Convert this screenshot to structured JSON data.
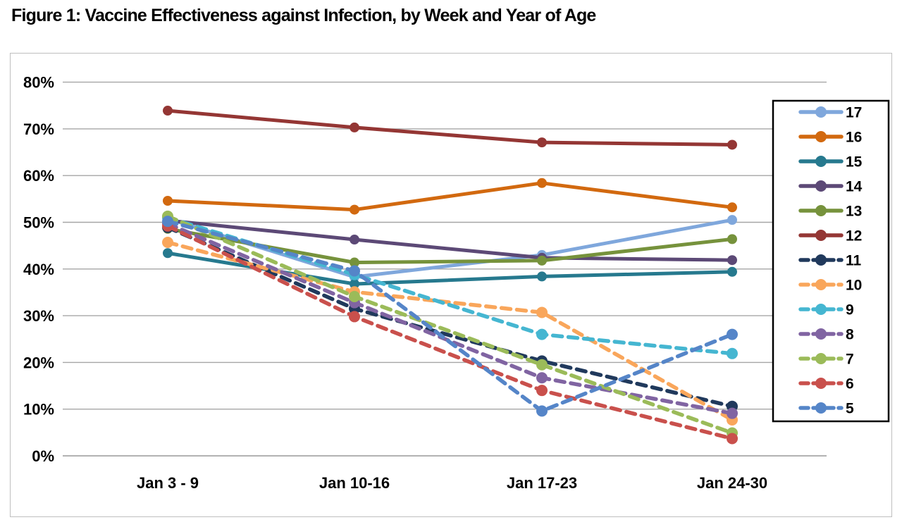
{
  "title": "Figure 1: Vaccine Effectiveness against Infection, by Week and Year of Age",
  "chart_data": {
    "type": "line",
    "categories": [
      "Jan 3 - 9",
      "Jan 10-16",
      "Jan 17-23",
      "Jan 24-30"
    ],
    "y_ticks": [
      "80%",
      "70%",
      "60%",
      "50%",
      "40%",
      "30%",
      "20%",
      "10%",
      "0%"
    ],
    "ylim": [
      0,
      80
    ],
    "y_tick_step": 10,
    "grid": true,
    "legend_position": "right-overlay",
    "xlabel": "",
    "ylabel": "",
    "series": [
      {
        "name": "17",
        "color": "#7FA7DC",
        "dash": false,
        "values": [
          50.8,
          38.3,
          43.0,
          50.5
        ]
      },
      {
        "name": "16",
        "color": "#D2690F",
        "dash": false,
        "values": [
          54.6,
          52.7,
          58.4,
          53.2
        ]
      },
      {
        "name": "15",
        "color": "#26798E",
        "dash": false,
        "values": [
          43.4,
          36.8,
          38.4,
          39.4
        ]
      },
      {
        "name": "14",
        "color": "#5C4976",
        "dash": false,
        "values": [
          50.4,
          46.3,
          42.4,
          41.9
        ]
      },
      {
        "name": "13",
        "color": "#76923C",
        "dash": false,
        "values": [
          48.6,
          41.4,
          41.8,
          46.4
        ]
      },
      {
        "name": "12",
        "color": "#943634",
        "dash": false,
        "values": [
          73.9,
          70.3,
          67.1,
          66.6
        ]
      },
      {
        "name": "11",
        "color": "#20395C",
        "dash": true,
        "values": [
          48.9,
          31.5,
          20.3,
          10.6
        ]
      },
      {
        "name": "10",
        "color": "#F9A65B",
        "dash": true,
        "values": [
          45.7,
          35.1,
          30.7,
          7.7
        ]
      },
      {
        "name": "9",
        "color": "#45B6D1",
        "dash": true,
        "values": [
          51.0,
          38.8,
          26.0,
          21.9
        ]
      },
      {
        "name": "8",
        "color": "#8064A2",
        "dash": true,
        "values": [
          49.7,
          32.8,
          16.7,
          9.1
        ]
      },
      {
        "name": "7",
        "color": "#9BBB59",
        "dash": true,
        "values": [
          51.3,
          34.1,
          19.5,
          4.9
        ]
      },
      {
        "name": "6",
        "color": "#C9504C",
        "dash": true,
        "values": [
          49.2,
          29.8,
          14.0,
          3.7
        ]
      },
      {
        "name": "5",
        "color": "#5585C8",
        "dash": true,
        "values": [
          50.2,
          39.6,
          9.6,
          26.0
        ]
      }
    ],
    "colors": {
      "gridline": "#A6A6A6",
      "zero_line": "#999999",
      "chart_border": "#BFBFBF",
      "legend_border": "#000000",
      "legend_background": "#FFFFFF",
      "text": "#000000",
      "background": "#FFFFFF"
    }
  }
}
